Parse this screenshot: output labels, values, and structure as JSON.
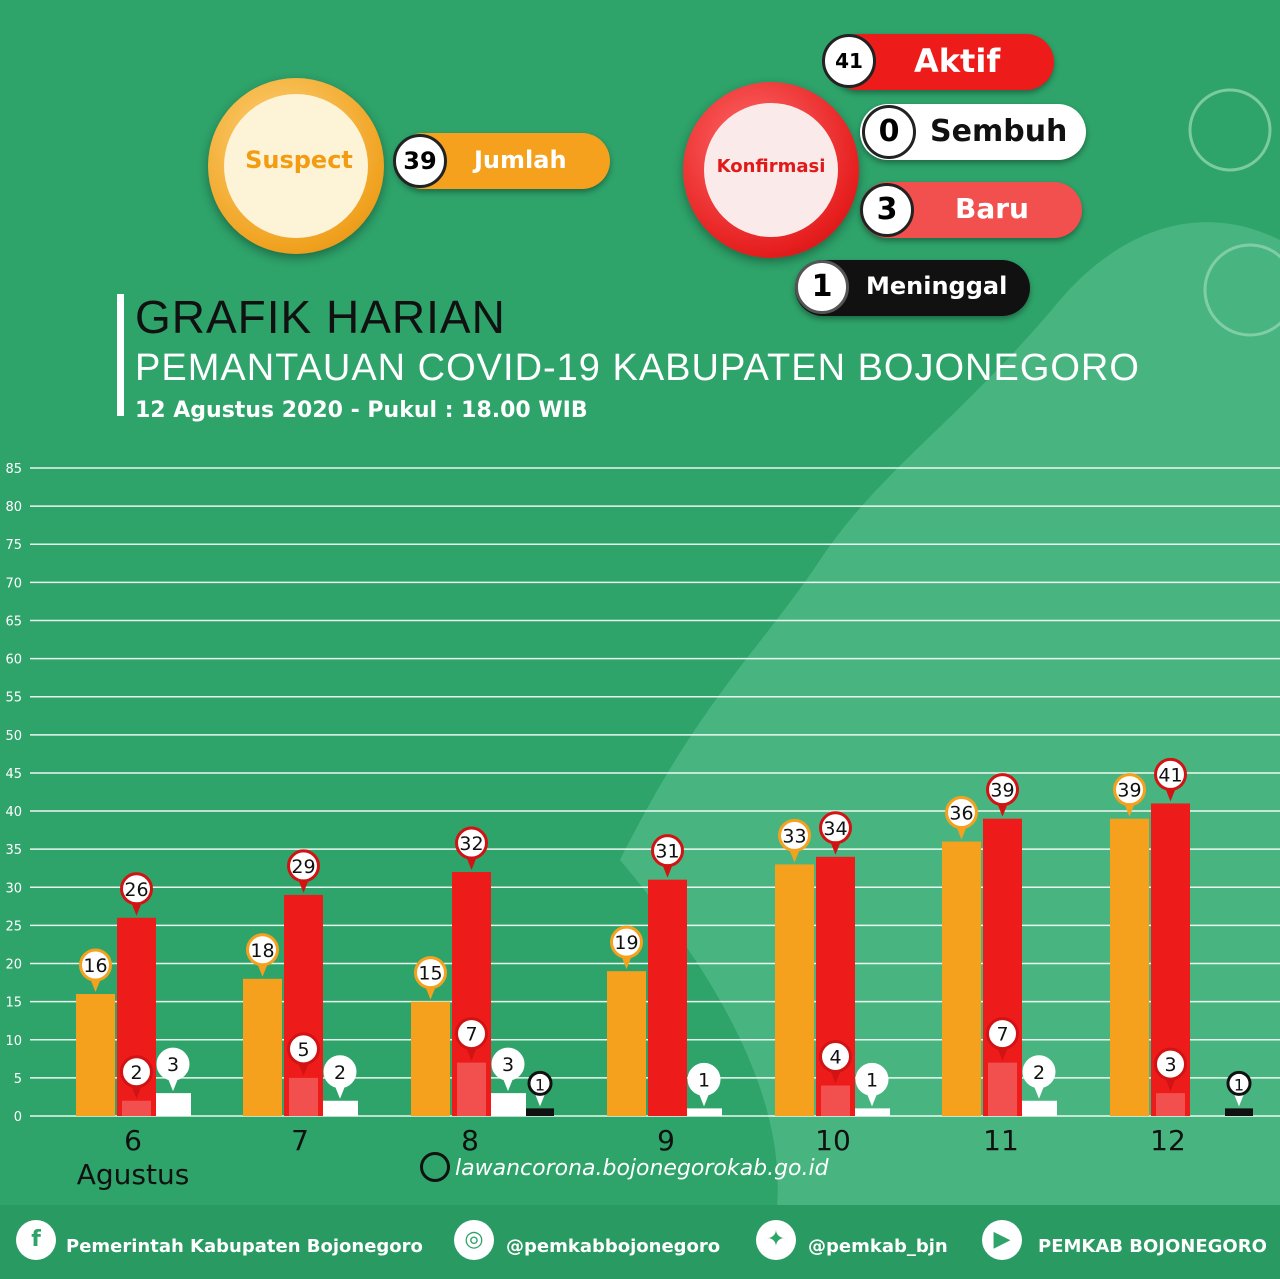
{
  "summary": {
    "suspect": {
      "label": "Suspect",
      "value": "39",
      "value_label": "Jumlah"
    },
    "konfirmasi": {
      "label": "Konfirmasi",
      "aktif": {
        "value": "41",
        "label": "Aktif"
      },
      "sembuh": {
        "value": "0",
        "label": "Sembuh"
      },
      "baru": {
        "value": "3",
        "label": "Baru"
      },
      "meninggal": {
        "value": "1",
        "label": "Meninggal"
      }
    }
  },
  "header": {
    "title": "GRAFIK HARIAN",
    "subtitle": "PEMANTAUAN COVID-19 KABUPATEN BOJONEGORO",
    "date": "12 Agustus 2020 - Pukul : 18.00 WIB"
  },
  "colors": {
    "background": "#2ea36a",
    "suspect": "#f5a11e",
    "aktif": "#ee1b1b",
    "baru": "#f24f4f",
    "sembuh": "#ffffff",
    "meninggal": "#111111"
  },
  "chart_data": {
    "type": "bar",
    "categories": [
      "6",
      "7",
      "8",
      "9",
      "10",
      "11",
      "12"
    ],
    "category_sublabel": "Agustus",
    "ylim": [
      0,
      85
    ],
    "yticks": [
      0,
      5,
      10,
      15,
      20,
      25,
      30,
      35,
      40,
      45,
      50,
      55,
      60,
      65,
      70,
      75,
      80,
      85
    ],
    "grid": true,
    "series": [
      {
        "key": "suspect",
        "values": [
          16,
          18,
          15,
          19,
          33,
          36,
          39
        ]
      },
      {
        "key": "aktif",
        "values": [
          26,
          29,
          32,
          31,
          34,
          39,
          41
        ]
      },
      {
        "key": "baru",
        "values": [
          2,
          5,
          7,
          null,
          4,
          7,
          3
        ]
      },
      {
        "key": "sembuh",
        "values": [
          3,
          2,
          3,
          1,
          1,
          2,
          null
        ]
      },
      {
        "key": "meninggal",
        "values": [
          null,
          null,
          1,
          null,
          null,
          null,
          1
        ]
      }
    ]
  },
  "footer": {
    "website": "lawancorona.bojonegorokab.go.id",
    "facebook": "Pemerintah Kabupaten Bojonegoro",
    "instagram": "@pemkabbojonegoro",
    "twitter": "@pemkab_bjn",
    "youtube": "PEMKAB BOJONEGORO"
  }
}
